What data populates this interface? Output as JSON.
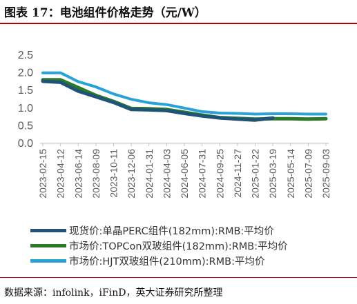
{
  "header": {
    "title": "图表 17：电池组件价格走势（元/W）"
  },
  "footer": {
    "source": "数据来源：infolink，iFinD，英大证券研究所整理"
  },
  "chart_data": {
    "type": "line",
    "title": "图表 17：电池组件价格走势（元/W）",
    "xlabel": "",
    "ylabel": "",
    "ylim": [
      0,
      2.5
    ],
    "yticks": [
      "0.0",
      "0.5",
      "1.0",
      "1.5",
      "2.0",
      "2.5"
    ],
    "grid": false,
    "legend_position": "bottom",
    "categories": [
      "2023-02-15",
      "2023-04-12",
      "2023-06-14",
      "2023-08-09",
      "2023-10-11",
      "2023-12-06",
      "2024-01-31",
      "2024-04-03",
      "2024-06-05",
      "2024-07-31",
      "2024-09-25",
      "2024-11-27",
      "2025-01-22",
      "2025-03-19",
      "2025-05-14",
      "2025-07-09",
      "2025-09-03"
    ],
    "series": [
      {
        "name": "现货价:单晶PERC组件(182mm):RMB:平均价",
        "color": "#1f5477",
        "values": [
          1.76,
          1.73,
          1.48,
          1.32,
          1.16,
          0.96,
          0.95,
          0.93,
          0.85,
          0.78,
          0.72,
          0.69,
          0.66,
          0.72,
          null,
          null,
          null
        ]
      },
      {
        "name": "市场价:TOPCon双玻组件(182mm):RMB:平均价",
        "color": "#2a7a2a",
        "values": [
          1.8,
          1.8,
          1.58,
          1.36,
          1.19,
          0.99,
          0.98,
          0.96,
          0.88,
          0.8,
          0.73,
          0.71,
          0.69,
          0.7,
          0.7,
          0.69,
          0.7
        ]
      },
      {
        "name": "市场价:HJT双玻组件(210mm):RMB:平均价",
        "color": "#2aa2d8",
        "values": [
          2.0,
          2.0,
          1.75,
          1.6,
          1.4,
          1.25,
          1.15,
          1.1,
          1.0,
          0.9,
          0.86,
          0.85,
          0.83,
          0.84,
          0.84,
          0.83,
          0.83
        ]
      }
    ]
  }
}
